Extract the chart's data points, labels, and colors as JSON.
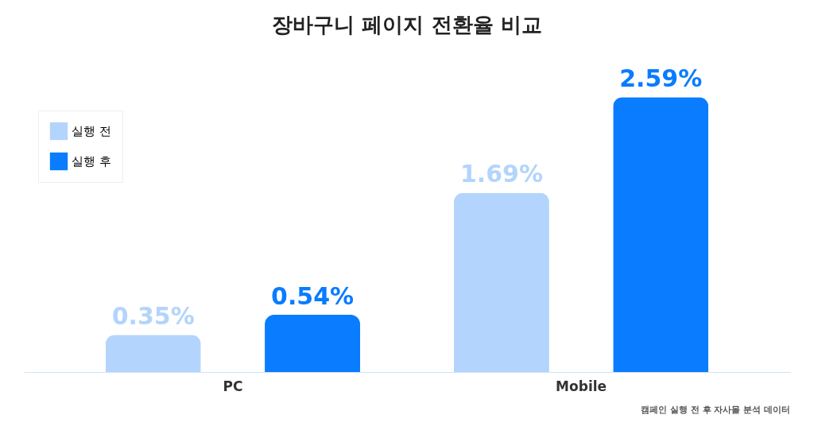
{
  "chart_data": {
    "type": "bar",
    "title": "장바구니 페이지 전환율 비교",
    "categories": [
      "PC",
      "Mobile"
    ],
    "series": [
      {
        "name": "실행 전",
        "color": "#b3d4fc",
        "values": [
          0.35,
          1.69
        ],
        "value_labels": [
          "0.35%",
          "1.69%"
        ]
      },
      {
        "name": "실행 후",
        "color": "#0a7cff",
        "values": [
          0.54,
          2.59
        ],
        "value_labels": [
          "0.54%",
          "2.59%"
        ]
      }
    ],
    "legend": "top left",
    "grid": false,
    "annotations": [
      "캠페인 실행 전 후 자사몰 분석 데이터"
    ]
  }
}
